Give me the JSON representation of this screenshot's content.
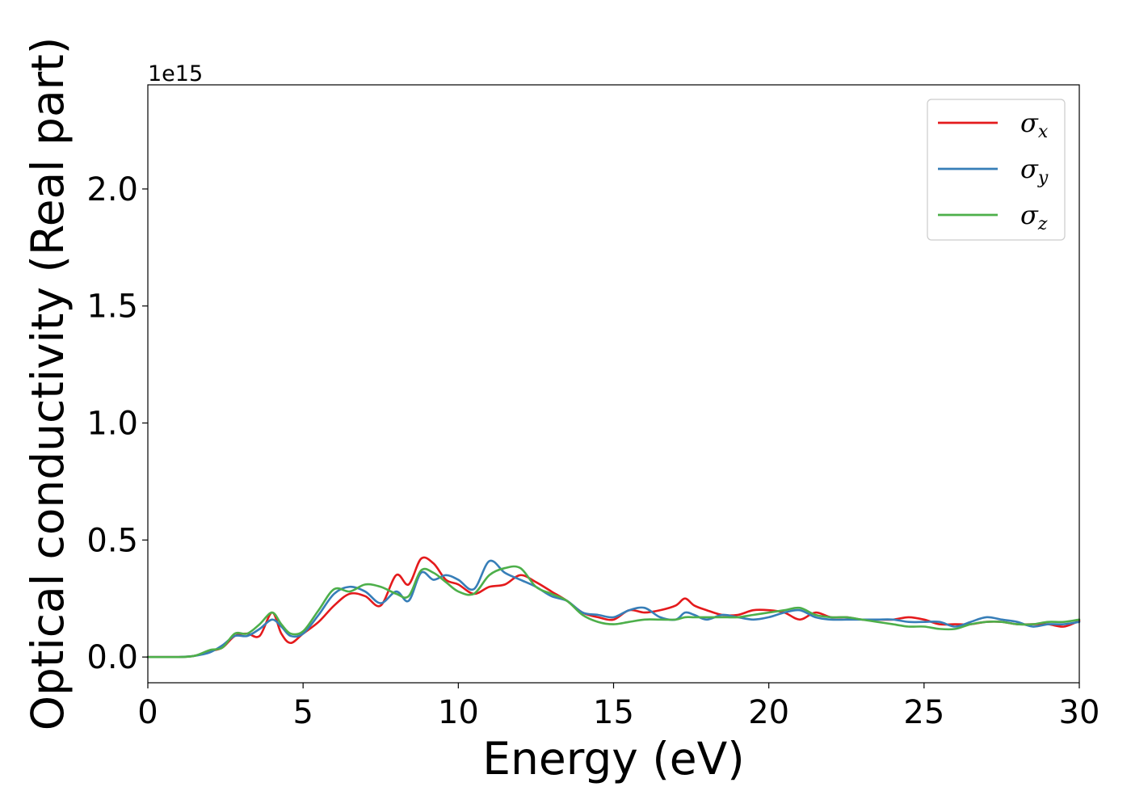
{
  "chart_data": {
    "type": "line",
    "xlabel": "Energy (eV)",
    "ylabel": "Optical conductivity (Real part)",
    "y_offset_label": "1e15",
    "xlim": [
      0,
      30
    ],
    "ylim": [
      -0.11,
      2.445
    ],
    "xticks": [
      0,
      5,
      10,
      15,
      20,
      25,
      30
    ],
    "xtick_labels": [
      "0",
      "5",
      "10",
      "15",
      "20",
      "25",
      "30"
    ],
    "yticks": [
      0.0,
      0.5,
      1.0,
      1.5,
      2.0
    ],
    "ytick_labels": [
      "0.0",
      "0.5",
      "1.0",
      "1.5",
      "2.0"
    ],
    "grid": false,
    "legend_position": "top-right",
    "x": [
      0,
      0.5,
      1.0,
      1.5,
      2.0,
      2.4,
      2.8,
      3.2,
      3.6,
      4.0,
      4.3,
      4.6,
      5.0,
      5.5,
      6.0,
      6.5,
      7.0,
      7.5,
      8.0,
      8.4,
      8.8,
      9.2,
      9.6,
      10.0,
      10.5,
      11.0,
      11.5,
      12.0,
      12.5,
      13.0,
      13.5,
      14.0,
      14.5,
      15.0,
      15.5,
      16.0,
      16.5,
      17.0,
      17.3,
      17.6,
      18.0,
      18.5,
      19.0,
      19.5,
      20.0,
      20.5,
      21.0,
      21.5,
      22.0,
      22.5,
      23.0,
      23.5,
      24.0,
      24.5,
      25.0,
      25.5,
      26.0,
      26.5,
      27.0,
      27.5,
      28.0,
      28.5,
      29.0,
      29.5,
      30.0
    ],
    "series": [
      {
        "name": "σx",
        "legend_base": "σ",
        "legend_sub": "x",
        "color": "#e41a1c",
        "values": [
          0.0,
          0.0,
          0.0,
          0.005,
          0.025,
          0.04,
          0.09,
          0.1,
          0.09,
          0.19,
          0.1,
          0.06,
          0.1,
          0.15,
          0.22,
          0.27,
          0.26,
          0.22,
          0.35,
          0.31,
          0.42,
          0.4,
          0.33,
          0.31,
          0.27,
          0.3,
          0.31,
          0.35,
          0.32,
          0.28,
          0.24,
          0.19,
          0.17,
          0.16,
          0.2,
          0.19,
          0.2,
          0.22,
          0.25,
          0.22,
          0.2,
          0.18,
          0.18,
          0.2,
          0.2,
          0.19,
          0.16,
          0.19,
          0.17,
          0.17,
          0.16,
          0.16,
          0.16,
          0.17,
          0.16,
          0.14,
          0.14,
          0.14,
          0.15,
          0.15,
          0.14,
          0.14,
          0.14,
          0.13,
          0.155
        ]
      },
      {
        "name": "σy",
        "legend_base": "σ",
        "legend_sub": "y",
        "color": "#377eb8",
        "values": [
          0.0,
          0.0,
          0.0,
          0.005,
          0.02,
          0.05,
          0.09,
          0.09,
          0.12,
          0.16,
          0.13,
          0.09,
          0.1,
          0.18,
          0.27,
          0.3,
          0.28,
          0.23,
          0.28,
          0.24,
          0.36,
          0.33,
          0.35,
          0.33,
          0.29,
          0.41,
          0.36,
          0.33,
          0.3,
          0.26,
          0.24,
          0.19,
          0.18,
          0.17,
          0.2,
          0.21,
          0.17,
          0.16,
          0.19,
          0.18,
          0.16,
          0.18,
          0.17,
          0.16,
          0.17,
          0.19,
          0.2,
          0.17,
          0.16,
          0.16,
          0.16,
          0.16,
          0.16,
          0.15,
          0.15,
          0.15,
          0.13,
          0.15,
          0.17,
          0.16,
          0.15,
          0.13,
          0.14,
          0.14,
          0.15
        ]
      },
      {
        "name": "σz",
        "legend_base": "σ",
        "legend_sub": "z",
        "color": "#4daf4a",
        "values": [
          0.0,
          0.0,
          0.0,
          0.005,
          0.03,
          0.04,
          0.1,
          0.1,
          0.14,
          0.19,
          0.14,
          0.1,
          0.11,
          0.2,
          0.29,
          0.28,
          0.31,
          0.3,
          0.27,
          0.26,
          0.37,
          0.36,
          0.32,
          0.28,
          0.27,
          0.35,
          0.38,
          0.38,
          0.3,
          0.27,
          0.24,
          0.18,
          0.15,
          0.14,
          0.15,
          0.16,
          0.16,
          0.16,
          0.17,
          0.17,
          0.17,
          0.17,
          0.17,
          0.18,
          0.19,
          0.2,
          0.21,
          0.18,
          0.17,
          0.17,
          0.16,
          0.15,
          0.14,
          0.13,
          0.13,
          0.12,
          0.12,
          0.14,
          0.15,
          0.15,
          0.14,
          0.14,
          0.15,
          0.15,
          0.16
        ]
      }
    ]
  }
}
